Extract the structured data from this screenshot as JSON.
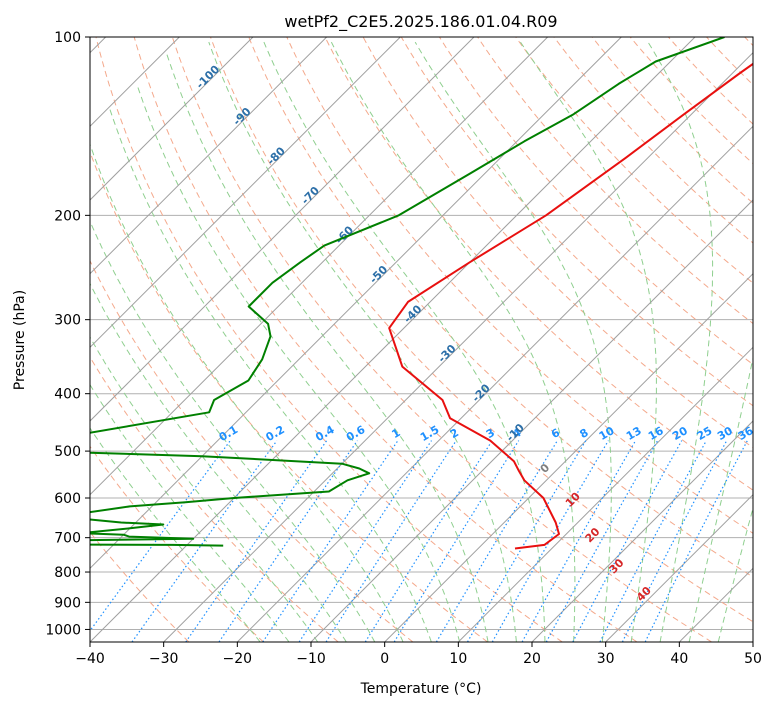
{
  "chart_data": {
    "type": "line",
    "diagram": "skew-T log-P",
    "title": "wetPf2_C2E5.2025.186.01.04.R09",
    "xlabel": "Temperature (°C)",
    "ylabel": "Pressure (hPa)",
    "xlim": [
      -40,
      50
    ],
    "ylim": [
      1050,
      100
    ],
    "yscale": "log",
    "grid": true,
    "x_ticks": [
      -40,
      -30,
      -20,
      -10,
      0,
      10,
      20,
      30,
      40,
      50
    ],
    "y_ticks": [
      100,
      200,
      300,
      400,
      500,
      600,
      700,
      800,
      900,
      1000
    ],
    "series": [
      {
        "color": "#e8100f",
        "points": [
          [
            -27,
            100
          ],
          [
            -29,
            115
          ],
          [
            -31,
            135
          ],
          [
            -33,
            160
          ],
          [
            -36,
            200
          ],
          [
            -40,
            240
          ],
          [
            -43,
            280
          ],
          [
            -42,
            310
          ],
          [
            -35,
            360
          ],
          [
            -25,
            410
          ],
          [
            -21.5,
            440
          ],
          [
            -13,
            480
          ],
          [
            -7,
            520
          ],
          [
            -5,
            540
          ],
          [
            -3,
            560
          ],
          [
            2,
            600
          ],
          [
            7,
            660
          ],
          [
            9,
            690
          ],
          [
            8.5,
            720
          ],
          [
            5,
            730
          ]
        ]
      },
      {
        "color": "#008000",
        "points": [
          [
            -36,
            100
          ],
          [
            -42,
            110
          ],
          [
            -44,
            120
          ],
          [
            -46,
            135
          ],
          [
            -49,
            150
          ],
          [
            -52,
            170
          ],
          [
            -56,
            200
          ],
          [
            -62,
            225
          ],
          [
            -63,
            240
          ],
          [
            -64,
            260
          ],
          [
            -64,
            285
          ],
          [
            -59,
            305
          ],
          [
            -57,
            320
          ],
          [
            -55,
            350
          ],
          [
            -54,
            380
          ],
          [
            -56,
            410
          ],
          [
            -55,
            430
          ],
          [
            -70,
            470
          ],
          [
            -88,
            480
          ],
          [
            -85,
            495
          ],
          [
            -50,
            510
          ],
          [
            -30,
            525
          ],
          [
            -27,
            535
          ],
          [
            -25,
            545
          ],
          [
            -27,
            560
          ],
          [
            -28,
            585
          ],
          [
            -40,
            600
          ],
          [
            -46,
            610
          ],
          [
            -53,
            620
          ],
          [
            -58,
            635
          ],
          [
            -58,
            650
          ],
          [
            -52,
            660
          ],
          [
            -46,
            665
          ],
          [
            -50,
            675
          ],
          [
            -56,
            688
          ],
          [
            -50,
            692
          ],
          [
            -49,
            697
          ],
          [
            -40,
            703
          ],
          [
            -58,
            708
          ],
          [
            -60,
            713
          ],
          [
            -66,
            718
          ],
          [
            -42,
            720
          ],
          [
            -35,
            722
          ]
        ]
      }
    ],
    "isotherm_labels": [
      "-100",
      "-90",
      "-80",
      "-70",
      "-60",
      "-50",
      "-40",
      "-30",
      "-20",
      "-10"
    ],
    "mixing_ratio_labels": [
      "0.1",
      "0.2",
      "0.4",
      "0.6",
      "1",
      "1.5",
      "2",
      "3",
      "4",
      "6",
      "8",
      "10",
      "13",
      "16",
      "20",
      "25",
      "30",
      "36"
    ],
    "moist_adiabat_labels": [
      "0",
      "10",
      "20",
      "30",
      "40"
    ],
    "colors": {
      "temperature": "#e8100f",
      "dewpoint": "#008000",
      "isotherm_label": "#2c6fa8",
      "mixing_ratio": "#1e90ff",
      "dry_adiabat": "#f4a98c",
      "moist_adiabat": "#8fcf8f",
      "moist_label_red": "#d62728",
      "moist_label_gray": "#7f7f7f",
      "skewed_isotherm": "#a0a0a0"
    }
  }
}
